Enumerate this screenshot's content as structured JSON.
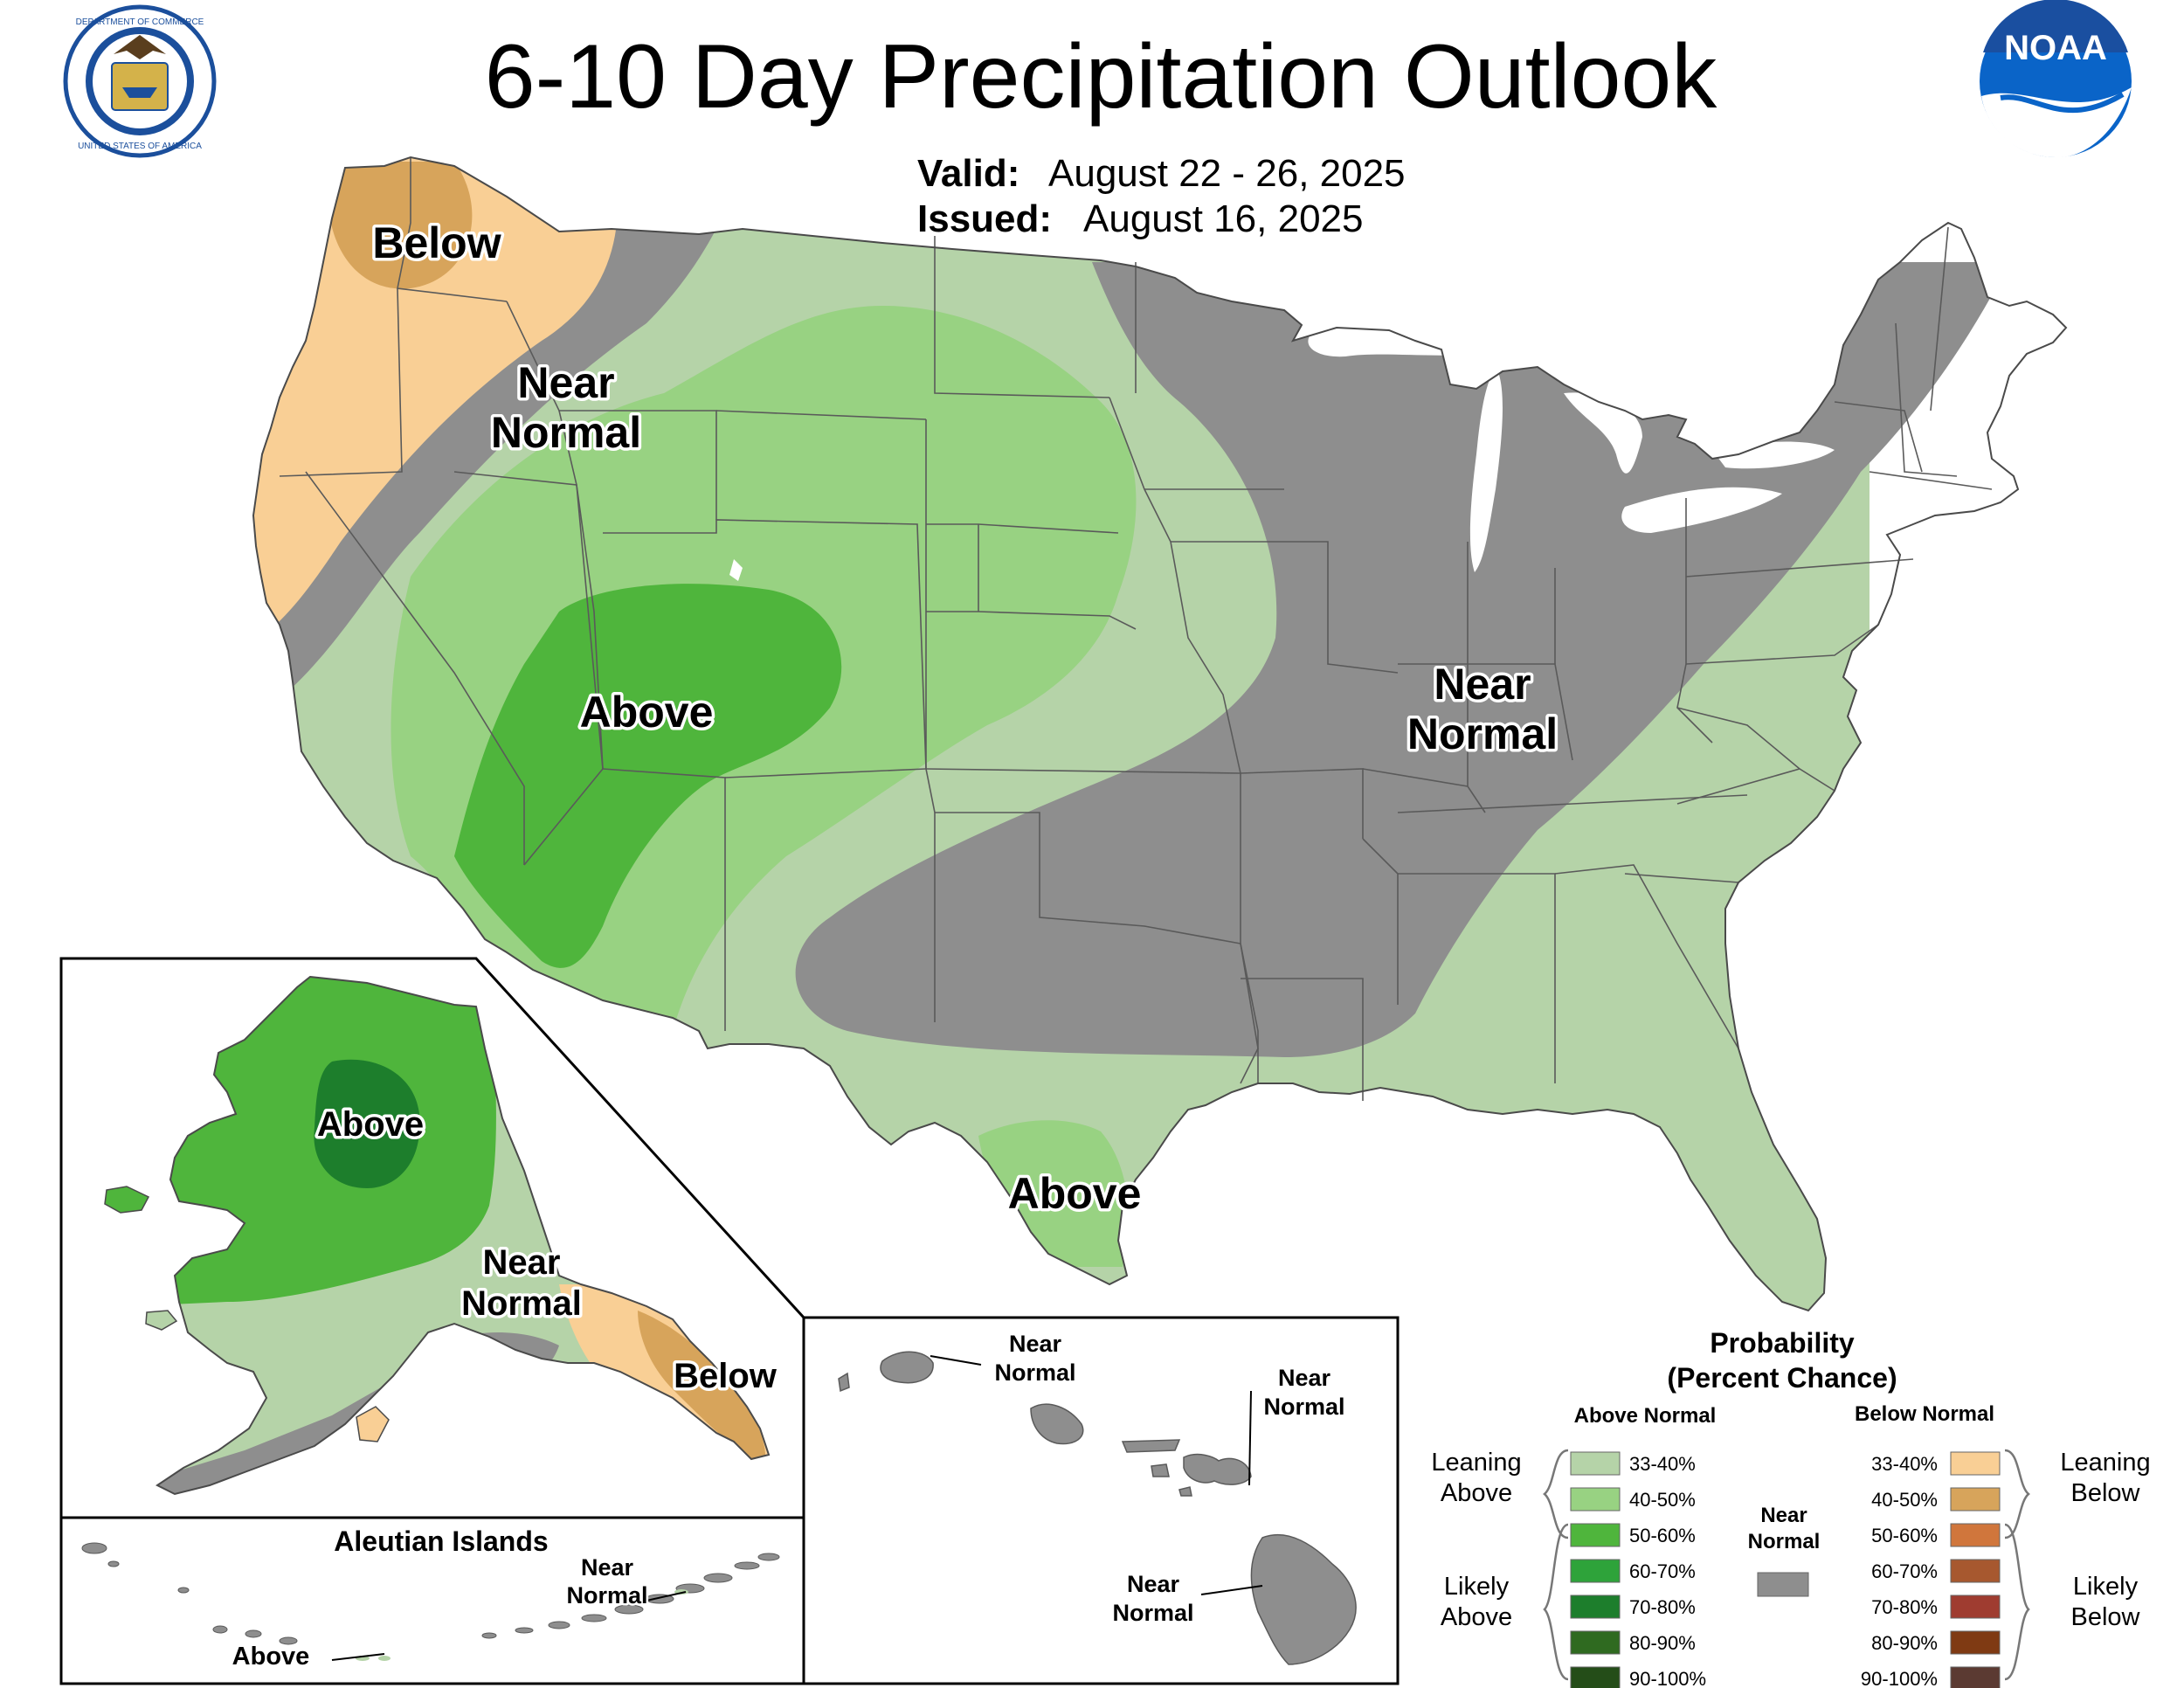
{
  "title": "6-10 Day Precipitation Outlook",
  "valid": {
    "label": "Valid:",
    "value": "August 22 - 26, 2025"
  },
  "issued": {
    "label": "Issued:",
    "value": "August 16, 2025"
  },
  "logos": {
    "commerce": {
      "top_text": "DEPARTMENT OF COMMERCE",
      "bottom_text": "UNITED STATES OF AMERICA"
    },
    "noaa": {
      "text": "NOAA"
    }
  },
  "colors": {
    "above_33_40": "#b5d3a8",
    "above_40_50": "#98d282",
    "above_50_60": "#4fb53c",
    "above_60_70": "#2ea33a",
    "above_70_80": "#1d7e2c",
    "above_80_90": "#2f6a20",
    "above_90_100": "#244d18",
    "near_normal": "#8e8e8e",
    "below_33_40": "#f9cf95",
    "below_40_50": "#d7a45b",
    "below_50_60": "#d0763c",
    "below_60_70": "#a7582f",
    "below_70_80": "#9f3c30",
    "below_80_90": "#7f3a13",
    "below_90_100": "#5b3a32",
    "water": "#ffffff"
  },
  "conus_labels": {
    "nw_below": "Below",
    "nw_near": [
      "Near",
      "Normal"
    ],
    "sw_above": "Above",
    "east_near": [
      "Near",
      "Normal"
    ],
    "tx_above": "Above"
  },
  "alaska_labels": {
    "above": "Above",
    "near": [
      "Near",
      "Normal"
    ],
    "below": "Below"
  },
  "aleutian": {
    "title": "Aleutian Islands",
    "near": [
      "Near",
      "Normal"
    ],
    "above": "Above"
  },
  "hawaii_labels": {
    "nw": [
      "Near",
      "Normal"
    ],
    "ne": [
      "Near",
      "Normal"
    ],
    "big_island": [
      "Near",
      "Normal"
    ]
  },
  "legend": {
    "title": [
      "Probability",
      "(Percent Chance)"
    ],
    "above_header": "Above Normal",
    "below_header": "Below Normal",
    "near_label": [
      "Near",
      "Normal"
    ],
    "leaning_above": [
      "Leaning",
      "Above"
    ],
    "likely_above": [
      "Likely",
      "Above"
    ],
    "leaning_below": [
      "Leaning",
      "Below"
    ],
    "likely_below": [
      "Likely",
      "Below"
    ],
    "above": [
      {
        "range": "33-40%",
        "color": "#b5d3a8"
      },
      {
        "range": "40-50%",
        "color": "#98d282"
      },
      {
        "range": "50-60%",
        "color": "#4fb53c"
      },
      {
        "range": "60-70%",
        "color": "#2ea33a"
      },
      {
        "range": "70-80%",
        "color": "#1d7e2c"
      },
      {
        "range": "80-90%",
        "color": "#2f6a20"
      },
      {
        "range": "90-100%",
        "color": "#244d18"
      }
    ],
    "below": [
      {
        "range": "33-40%",
        "color": "#f9cf95"
      },
      {
        "range": "40-50%",
        "color": "#d7a45b"
      },
      {
        "range": "50-60%",
        "color": "#d0763c"
      },
      {
        "range": "60-70%",
        "color": "#a7582f"
      },
      {
        "range": "70-80%",
        "color": "#9f3c30"
      },
      {
        "range": "80-90%",
        "color": "#7f3a13"
      },
      {
        "range": "90-100%",
        "color": "#5b3a32"
      }
    ]
  }
}
